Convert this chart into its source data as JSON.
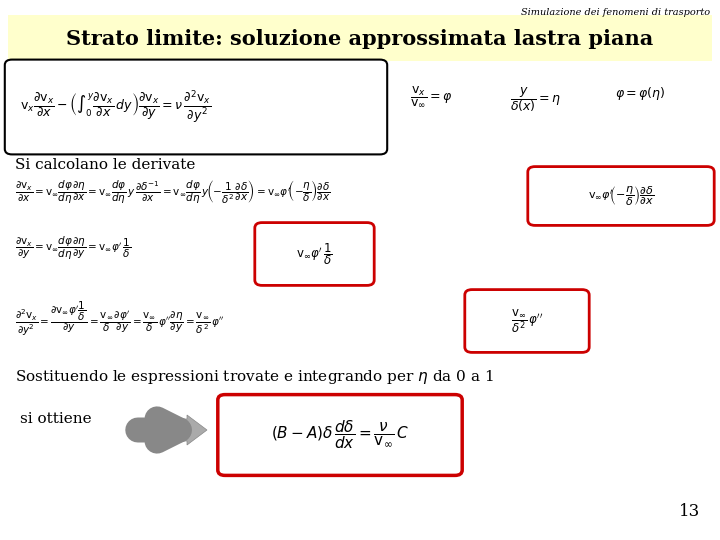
{
  "background_color": "#ffffff",
  "header_color": "#ffffee",
  "title_text": "Strato limite: soluzione approssimata lastra piana",
  "subtitle_text": "Simulazione dei fenomeni di trasporto",
  "page_number": "13",
  "text_color": "#000000",
  "red_box_color": "#cc0000",
  "formula_box_color": "#000000",
  "si_calcolano": "Si calcolano le derivate",
  "sostituendo": "Sostituendo le espressioni trovate e integrando per $\\eta$ da 0 a 1",
  "si_ottiene": "si ottiene"
}
